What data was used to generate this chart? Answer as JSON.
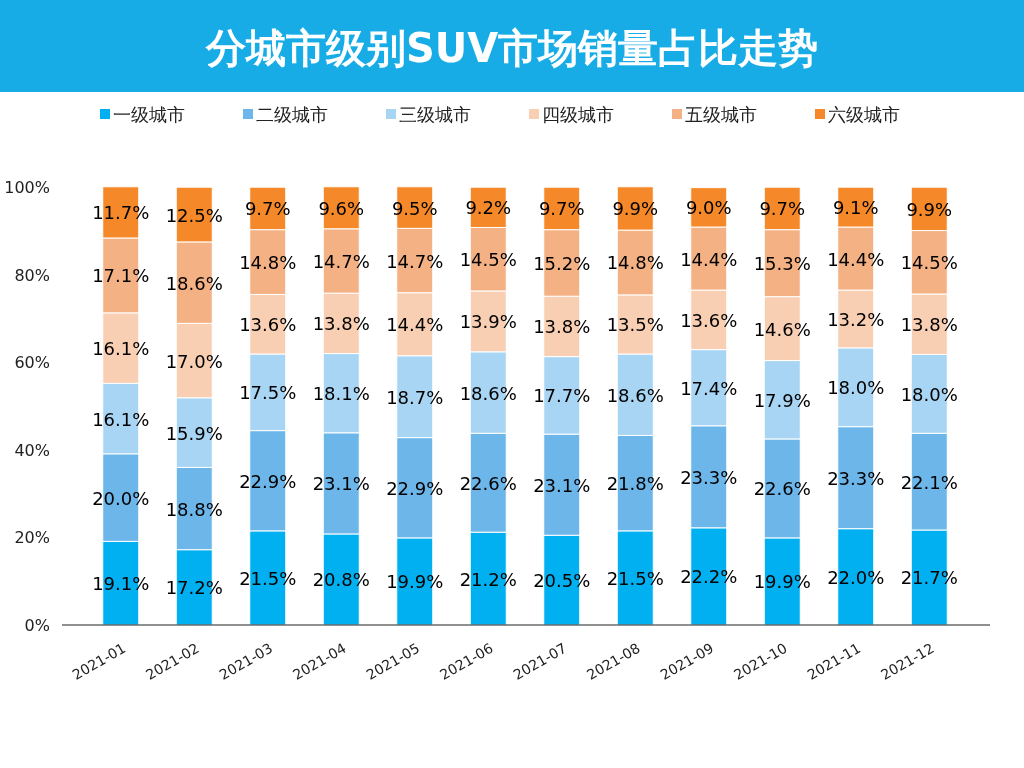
{
  "chart_data": {
    "type": "bar",
    "stacked": true,
    "title": "分城市级别SUV市场销量占比走势",
    "legend": "top",
    "categories": [
      "2021-01",
      "2021-02",
      "2021-03",
      "2021-04",
      "2021-05",
      "2021-06",
      "2021-07",
      "2021-08",
      "2021-09",
      "2021-10",
      "2021-11",
      "2021-12"
    ],
    "ylim": [
      0,
      100.5
    ],
    "yticks": [
      {
        "value": 0,
        "label": "0%"
      },
      {
        "value": 20,
        "label": "20%"
      },
      {
        "value": 40,
        "label": "40%"
      },
      {
        "value": 60,
        "label": "60%"
      },
      {
        "value": 80,
        "label": "80%"
      },
      {
        "value": 100,
        "label": "100%"
      }
    ],
    "series": [
      {
        "name": "一级城市",
        "color": "#00b0f0",
        "values": [
          19.1,
          17.2,
          21.5,
          20.8,
          19.9,
          21.2,
          20.5,
          21.5,
          22.2,
          19.9,
          22.0,
          21.7
        ],
        "value_labels": [
          "19.1%",
          "17.2%",
          "21.5%",
          "20.8%",
          "19.9%",
          "21.2%",
          "20.5%",
          "21.5%",
          "22.2%",
          "19.9%",
          "22.0%",
          "21.7%"
        ]
      },
      {
        "name": "二级城市",
        "color": "#6cb6ea",
        "values": [
          20.0,
          18.8,
          22.9,
          23.1,
          22.9,
          22.6,
          23.1,
          21.8,
          23.3,
          22.6,
          23.3,
          22.1
        ],
        "value_labels": [
          "20.0%",
          "18.8%",
          "22.9%",
          "23.1%",
          "22.9%",
          "22.6%",
          "23.1%",
          "21.8%",
          "23.3%",
          "22.6%",
          "23.3%",
          "22.1%"
        ]
      },
      {
        "name": "三级城市",
        "color": "#a8d5f3",
        "values": [
          16.1,
          15.9,
          17.5,
          18.1,
          18.7,
          18.6,
          17.7,
          18.6,
          17.4,
          17.9,
          18.0,
          18.0
        ],
        "value_labels": [
          "16.1%",
          "15.9%",
          "17.5%",
          "18.1%",
          "18.7%",
          "18.6%",
          "17.7%",
          "18.6%",
          "17.4%",
          "17.9%",
          "18.0%",
          "18.0%"
        ]
      },
      {
        "name": "四级城市",
        "color": "#f8cfb2",
        "values": [
          16.1,
          17.0,
          13.6,
          13.8,
          14.4,
          13.9,
          13.8,
          13.5,
          13.6,
          14.6,
          13.2,
          13.8
        ],
        "value_labels": [
          "16.1%",
          "17.0%",
          "13.6%",
          "13.8%",
          "14.4%",
          "13.9%",
          "13.8%",
          "13.5%",
          "13.6%",
          "14.6%",
          "13.2%",
          "13.8%"
        ]
      },
      {
        "name": "五级城市",
        "color": "#f4b184",
        "values": [
          17.1,
          18.6,
          14.8,
          14.7,
          14.7,
          14.5,
          15.2,
          14.8,
          14.4,
          15.3,
          14.4,
          14.5
        ],
        "value_labels": [
          "17.1%",
          "18.6%",
          "14.8%",
          "14.7%",
          "14.7%",
          "14.5%",
          "15.2%",
          "14.8%",
          "14.4%",
          "15.3%",
          "14.4%",
          "14.5%"
        ]
      },
      {
        "name": "六级城市",
        "color": "#f5892a",
        "values": [
          11.7,
          12.5,
          9.7,
          9.6,
          9.5,
          9.2,
          9.7,
          9.9,
          9.0,
          9.7,
          9.1,
          9.9
        ],
        "value_labels": [
          "11.7%",
          "12.5%",
          "9.7%",
          "9.6%",
          "9.5%",
          "9.2%",
          "9.7%",
          "9.9%",
          "9.0%",
          "9.7%",
          "9.1%",
          "9.9%"
        ]
      }
    ]
  }
}
